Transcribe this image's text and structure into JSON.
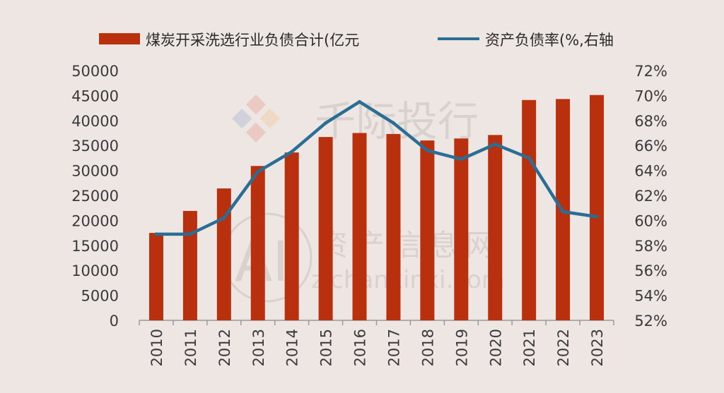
{
  "watermark": {
    "brand": "千际投行",
    "site_cn": "资产信息网",
    "site_url": "zichanxinxi.com",
    "logo_letters": "AI"
  },
  "chart_data": {
    "type": "bar",
    "categories": [
      "2010",
      "2011",
      "2012",
      "2013",
      "2014",
      "2015",
      "2016",
      "2017",
      "2018",
      "2019",
      "2020",
      "2021",
      "2022",
      "2023"
    ],
    "series": [
      {
        "name": "煤炭开采洗选行业负债合计(亿元",
        "type": "bar",
        "axis": "left",
        "color": "#b8300e",
        "values": [
          17500,
          21900,
          26400,
          30900,
          33600,
          36700,
          37500,
          37300,
          36000,
          36400,
          37100,
          44100,
          44300,
          45100
        ]
      },
      {
        "name": "资产负债率(%,右轴",
        "type": "line",
        "axis": "right",
        "color": "#2a6e96",
        "values": [
          58.9,
          58.9,
          60.2,
          63.9,
          65.5,
          67.8,
          69.5,
          67.8,
          65.6,
          64.9,
          66.1,
          65.0,
          60.7,
          60.3
        ]
      }
    ],
    "yaxis_left": {
      "min": 0,
      "max": 50000,
      "ticks": [
        "0",
        "5000",
        "10000",
        "15000",
        "20000",
        "25000",
        "30000",
        "35000",
        "40000",
        "45000",
        "50000"
      ]
    },
    "yaxis_right": {
      "min": 52,
      "max": 72,
      "ticks": [
        "52%",
        "54%",
        "56%",
        "58%",
        "60%",
        "62%",
        "64%",
        "66%",
        "68%",
        "70%",
        "72%"
      ]
    },
    "legend_position": "top-center",
    "grid": false
  }
}
